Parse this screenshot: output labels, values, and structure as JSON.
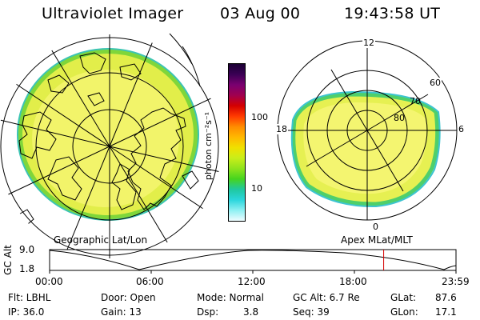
{
  "header": {
    "title": "Ultraviolet Imager",
    "date": "03 Aug 00",
    "time": "19:43:58 UT"
  },
  "left_map": {
    "label": "Geographic Lat/Lon"
  },
  "right_map": {
    "label": "Apex MLat/MLT",
    "mlt_labels": {
      "top": "12",
      "left": "18",
      "right": "6",
      "bottom": "0"
    },
    "lat_labels": [
      "60",
      "70",
      "80"
    ]
  },
  "colorbar": {
    "unit_label": "photon cm⁻²s⁻¹",
    "ticks": [
      "100",
      "10"
    ],
    "colors": [
      "#1a0033",
      "#3b0055",
      "#7a0070",
      "#a0004f",
      "#d40000",
      "#ff3a00",
      "#ff8c00",
      "#ffb800",
      "#f0e000",
      "#c8ee1a",
      "#8fe31c",
      "#46d41e",
      "#1fc8a0",
      "#2bd6dd",
      "#8ef0f2",
      "#eefcff"
    ]
  },
  "orbit_plot": {
    "ylabel": "GC Alt",
    "yticks": [
      "9.0",
      "1.8"
    ],
    "xticks": [
      "00:00",
      "06:00",
      "12:00",
      "18:00",
      "23:59"
    ],
    "current_time_fraction": 0.822
  },
  "footer": {
    "filter": "Flt: LBHL",
    "ip": "IP: 36.0",
    "door": "Door: Open",
    "gain": "Gain: 13",
    "mode": "Mode: Normal",
    "dsp_label": "Dsp:",
    "dsp_value": "3.8",
    "gc_alt": "GC Alt: 6.7 Re",
    "seq": "Seq: 39",
    "glat_label": "GLat:",
    "glat_value": "87.6",
    "glon_label": "GLon:",
    "glon_value": "17.1"
  },
  "colors": {
    "background": "#ffffff",
    "ink": "#000000",
    "marker": "#d40000"
  }
}
